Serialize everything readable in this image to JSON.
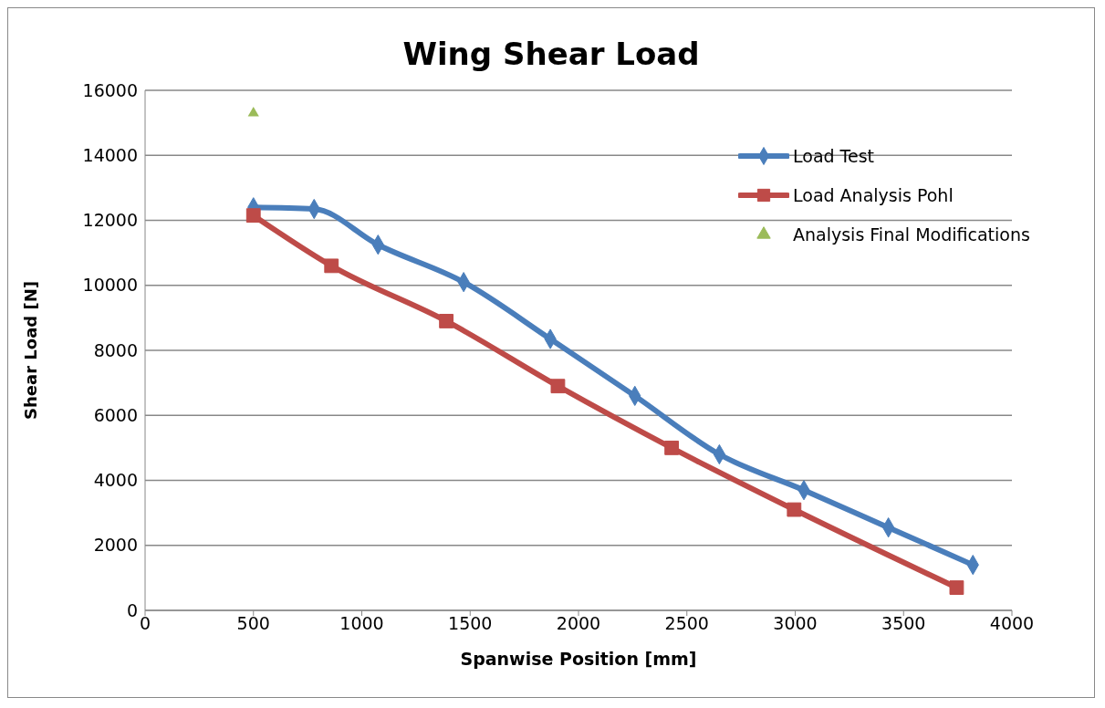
{
  "chart_data": {
    "type": "line",
    "title": "Wing Shear Load",
    "xlabel": "Spanwise Position [mm]",
    "ylabel": "Shear Load [N]",
    "xlim": [
      0,
      4000
    ],
    "xticks": [
      0,
      500,
      1000,
      1500,
      2000,
      2500,
      3000,
      3500,
      4000
    ],
    "ylim": [
      0,
      16000
    ],
    "yticks": [
      0,
      2000,
      4000,
      6000,
      8000,
      10000,
      12000,
      14000,
      16000
    ],
    "grid": "y",
    "legend": "top right",
    "series": [
      {
        "name": "Load Test",
        "marker": "diamond",
        "color": "#4a7ebb",
        "x": [
          500,
          780,
          1075,
          1470,
          1870,
          2260,
          2650,
          3040,
          3430,
          3820
        ],
        "values": [
          12400,
          12350,
          11250,
          10100,
          8350,
          6600,
          4800,
          3700,
          2550,
          1400
        ]
      },
      {
        "name": "Load Analysis Pohl",
        "marker": "square",
        "color": "#be4b48",
        "x": [
          500,
          860,
          1390,
          1905,
          2430,
          2995,
          3745
        ],
        "values": [
          12150,
          10600,
          8900,
          6900,
          5000,
          3100,
          700
        ]
      },
      {
        "name": "Analysis Final Modifications",
        "type": "scatter",
        "marker": "triangle",
        "color": "#9bbb59",
        "x": [
          500
        ],
        "values": [
          15300
        ]
      }
    ]
  }
}
